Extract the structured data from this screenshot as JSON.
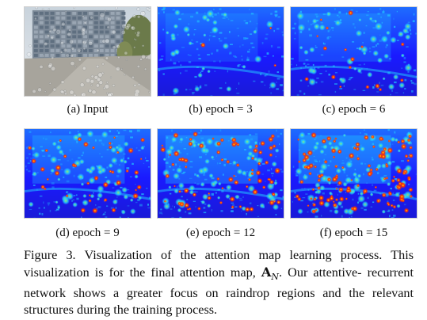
{
  "panels": [
    {
      "label": "(a) Input",
      "kind": "input"
    },
    {
      "label": "(b) epoch = 3",
      "kind": "attention",
      "intensity": 0.15
    },
    {
      "label": "(c) epoch = 6",
      "kind": "attention",
      "intensity": 0.35
    },
    {
      "label": "(d) epoch = 9",
      "kind": "attention",
      "intensity": 0.55
    },
    {
      "label": "(e) epoch = 12",
      "kind": "attention",
      "intensity": 0.75
    },
    {
      "label": "(f) epoch = 15",
      "kind": "attention",
      "intensity": 0.95
    }
  ],
  "figure_caption": {
    "line1": "Figure 3. Visualization of the attention map learning process. This",
    "line2_prefix": "visualization is for the final attention map,",
    "math_symbol": "A",
    "math_subscript": "N",
    "line2_suffix": ".  Our attentive-",
    "line3": "recurrent network shows a greater focus on raindrop regions and",
    "line4": "the relevant structures during the training process."
  },
  "colors": {
    "heatmap_low": "#1a1aff",
    "heatmap_mid": "#22d0ff",
    "heatmap_high": "#ff2a00",
    "heatmap_hot": "#ffe600"
  }
}
